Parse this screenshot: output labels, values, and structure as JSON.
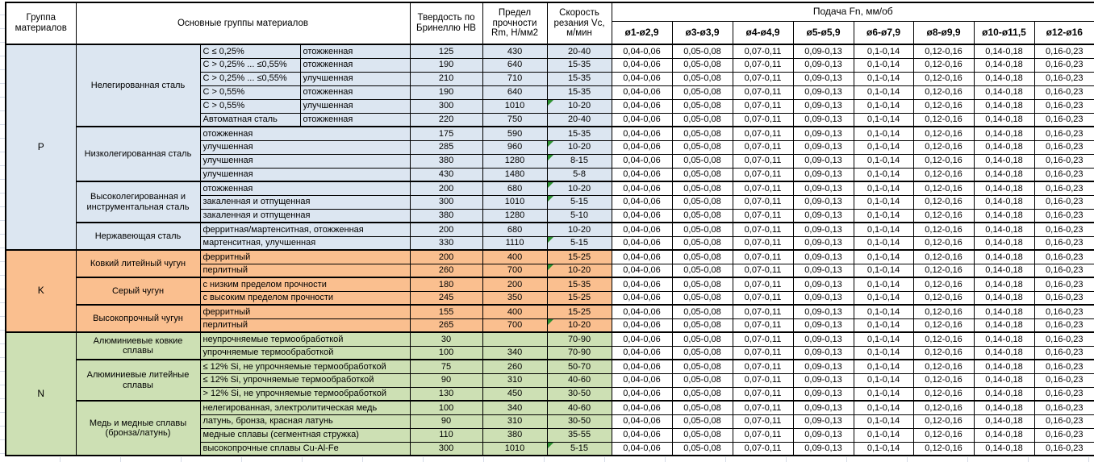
{
  "header": {
    "col_group": "Группа материалов",
    "col_main": "Основные группы материалов",
    "col_hb": "Твердость по Бринеллю HB",
    "col_rm": "Предел прочности Rm, Н/мм2",
    "col_vc": "Скорость резания Vc, м/мин",
    "feed_title": "Подача Fn, мм/об",
    "feed_cols": [
      "ø1-ø2,9",
      "ø3-ø3,9",
      "ø4-ø4,9",
      "ø5-ø5,9",
      "ø6-ø7,9",
      "ø8-ø9,9",
      "ø10-ø11,5",
      "ø12-ø16"
    ]
  },
  "feed_values": [
    "0,04-0,06",
    "0,05-0,08",
    "0,07-0,11",
    "0,09-0,13",
    "0,1-0,14",
    "0,12-0,16",
    "0,14-0,18",
    "0,16-0,23"
  ],
  "colors": {
    "group_p": "#dce6f1",
    "group_k": "#fabf8f",
    "group_n": "#cde0b4",
    "note_triangle": "#2e9132",
    "gridline": "#d6dce8",
    "border": "#000000"
  },
  "groups": [
    {
      "code": "P",
      "color": "#dce6f1",
      "subgroups": [
        {
          "name": "Нелегированная сталь",
          "rows": [
            {
              "comp": "C ≤ 0,25%",
              "state": "отожженная",
              "hb": "125",
              "rm": "430",
              "vc": "20-40",
              "note": false
            },
            {
              "comp": "C > 0,25% ... ≤0,55%",
              "state": "отожженная",
              "hb": "190",
              "rm": "640",
              "vc": "15-35",
              "note": false
            },
            {
              "comp": "C > 0,25% ... ≤0,55%",
              "state": "улучшенная",
              "hb": "210",
              "rm": "710",
              "vc": "15-35",
              "note": false
            },
            {
              "comp": "C > 0,55%",
              "state": "отожженная",
              "hb": "190",
              "rm": "640",
              "vc": "15-35",
              "note": false
            },
            {
              "comp": "C > 0,55%",
              "state": "улучшенная",
              "hb": "300",
              "rm": "1010",
              "vc": "10-20",
              "note": true
            },
            {
              "comp": "Автоматная сталь",
              "state": "отожженная",
              "hb": "220",
              "rm": "750",
              "vc": "20-40",
              "note": false
            }
          ]
        },
        {
          "name": "Низколегированная сталь",
          "rows": [
            {
              "desc": "отожженная",
              "hb": "175",
              "rm": "590",
              "vc": "15-35",
              "note": false
            },
            {
              "desc": "улучшенная",
              "hb": "285",
              "rm": "960",
              "vc": "10-20",
              "note": true
            },
            {
              "desc": "улучшенная",
              "hb": "380",
              "rm": "1280",
              "vc": "8-15",
              "note": true
            },
            {
              "desc": "улучшенная",
              "hb": "430",
              "rm": "1480",
              "vc": "5-8",
              "note": false
            }
          ]
        },
        {
          "name": "Высоколегированная и инструментальная сталь",
          "rows": [
            {
              "desc": "отожженная",
              "hb": "200",
              "rm": "680",
              "vc": "10-20",
              "note": true
            },
            {
              "desc": "закаленная и отпущенная",
              "hb": "300",
              "rm": "1010",
              "vc": "5-15",
              "note": true
            },
            {
              "desc": "закаленная и отпущенная",
              "hb": "380",
              "rm": "1280",
              "vc": "5-10",
              "note": false
            }
          ]
        },
        {
          "name": "Нержавеющая сталь",
          "rows": [
            {
              "desc": "ферритная/мартенситная, отожженная",
              "hb": "200",
              "rm": "680",
              "vc": "10-20",
              "note": false
            },
            {
              "desc": "мартенситная, улучшенная",
              "hb": "330",
              "rm": "1110",
              "vc": "5-15",
              "note": true
            }
          ]
        }
      ]
    },
    {
      "code": "K",
      "color": "#fabf8f",
      "subgroups": [
        {
          "name": "Ковкий литейный чугун",
          "rows": [
            {
              "desc": "ферритный",
              "hb": "200",
              "rm": "400",
              "vc": "15-25",
              "note": false
            },
            {
              "desc": "перлитный",
              "hb": "260",
              "rm": "700",
              "vc": "10-20",
              "note": true
            }
          ]
        },
        {
          "name": "Серый чугун",
          "rows": [
            {
              "desc": "с низким пределом прочности",
              "hb": "180",
              "rm": "200",
              "vc": "15-35",
              "note": false
            },
            {
              "desc": "с высоким пределом прочности",
              "hb": "245",
              "rm": "350",
              "vc": "15-25",
              "note": false
            }
          ]
        },
        {
          "name": "Высокопрочный чугун",
          "rows": [
            {
              "desc": "ферритный",
              "hb": "155",
              "rm": "400",
              "vc": "15-25",
              "note": false
            },
            {
              "desc": "перлитный",
              "hb": "265",
              "rm": "700",
              "vc": "10-20",
              "note": true
            }
          ]
        }
      ]
    },
    {
      "code": "N",
      "color": "#cde0b4",
      "subgroups": [
        {
          "name": "Алюминиевые ковкие сплавы",
          "rows": [
            {
              "desc": "неупрочняемые термообработкой",
              "hb": "30",
              "rm": "",
              "vc": "70-90",
              "note": false
            },
            {
              "desc": "упрочняемые термообработкой",
              "hb": "100",
              "rm": "340",
              "vc": "70-90",
              "note": false
            }
          ]
        },
        {
          "name": "Алюминиевые литейные сплавы",
          "rows": [
            {
              "desc": "≤ 12% Si, не упрочняемые термообработкой",
              "hb": "75",
              "rm": "260",
              "vc": "50-70",
              "note": false
            },
            {
              "desc": "≤ 12% Si, упрочняемые термообработкой",
              "hb": "90",
              "rm": "310",
              "vc": "40-60",
              "note": false
            },
            {
              "desc": "> 12% Si, не упрочняемые термообработкой",
              "hb": "130",
              "rm": "450",
              "vc": "30-50",
              "note": false
            }
          ]
        },
        {
          "name": "Медь и медные сплавы (бронза/латунь)",
          "rows": [
            {
              "desc": "нелегированная, электролитическая медь",
              "hb": "100",
              "rm": "340",
              "vc": "40-60",
              "note": false
            },
            {
              "desc": "латунь, бронза, красная латунь",
              "hb": "90",
              "rm": "310",
              "vc": "30-50",
              "note": false
            },
            {
              "desc": "медные сплавы (сегментная стружка)",
              "hb": "110",
              "rm": "380",
              "vc": "35-55",
              "note": false
            },
            {
              "desc": "высокопрочные сплавы Cu-Al-Fe",
              "hb": "300",
              "rm": "1010",
              "vc": "5-15",
              "note": true
            }
          ]
        }
      ]
    }
  ]
}
